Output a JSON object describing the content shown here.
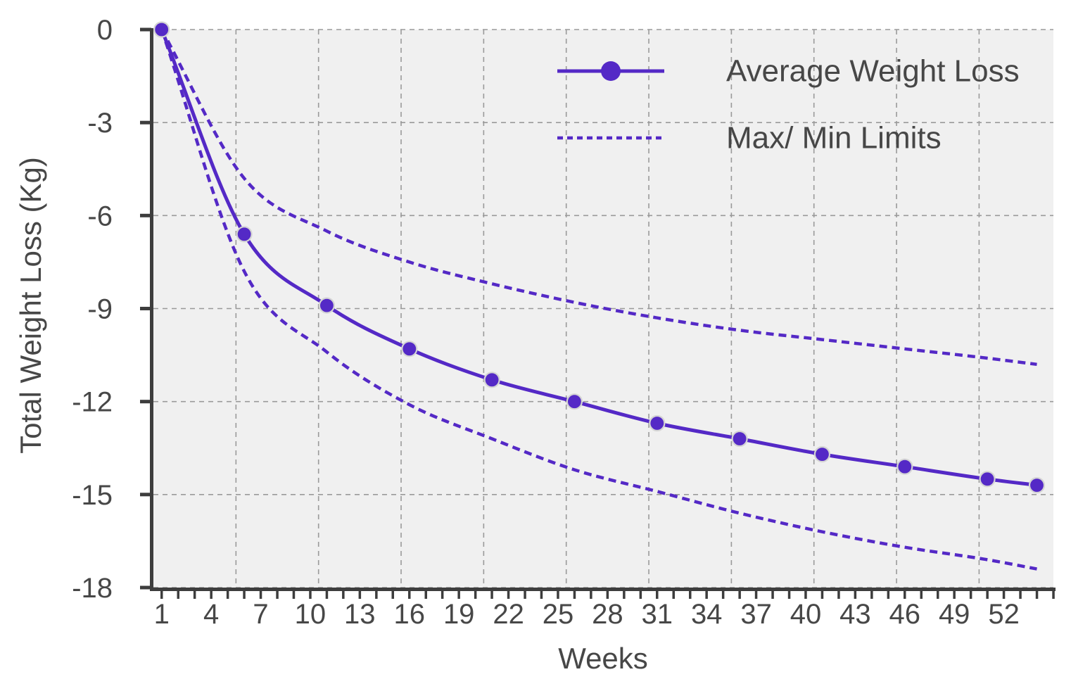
{
  "chart_data": {
    "type": "line",
    "title": "",
    "xlabel": "Weeks",
    "ylabel": "Total Weight Loss (Kg)",
    "xlim": [
      0.5,
      55
    ],
    "ylim": [
      -18,
      0
    ],
    "grid": "dashed gray gridlines on; plot background light gray",
    "x_gridlines": [
      5.5,
      10.5,
      15.5,
      20.5,
      25.5,
      30.5,
      35.5,
      40.5,
      45.5,
      50.5
    ],
    "x_minor_ticks": {
      "min": 1,
      "max": 55,
      "step": 1
    },
    "x_tick_labels": [
      1,
      4,
      7,
      10,
      13,
      16,
      19,
      22,
      25,
      28,
      31,
      34,
      37,
      40,
      43,
      46,
      49,
      52
    ],
    "y_ticks": [
      0,
      -3,
      -6,
      -9,
      -12,
      -15,
      -18
    ],
    "x": [
      1,
      6,
      11,
      16,
      21,
      26,
      31,
      36,
      41,
      46,
      51,
      54
    ],
    "series": [
      {
        "name": "Average Weight Loss",
        "style": "solid",
        "marker": "circle",
        "values": [
          0,
          -6.6,
          -8.9,
          -10.3,
          -11.3,
          -12.0,
          -12.7,
          -13.2,
          -13.7,
          -14.1,
          -14.5,
          -14.7
        ]
      },
      {
        "name": "Max/ Min Limits",
        "role": "min-limit (upper dashed curve)",
        "style": "dashed",
        "marker": "none",
        "values": [
          0,
          -4.8,
          -6.5,
          -7.5,
          -8.2,
          -8.8,
          -9.3,
          -9.7,
          -10.0,
          -10.3,
          -10.6,
          -10.8
        ]
      },
      {
        "name": "Max/ Min Limits",
        "role": "max-limit (lower dashed curve)",
        "style": "dashed",
        "marker": "none",
        "values": [
          0,
          -7.8,
          -10.4,
          -12.1,
          -13.2,
          -14.2,
          -14.9,
          -15.6,
          -16.2,
          -16.7,
          -17.1,
          -17.4
        ]
      }
    ],
    "legend": {
      "position": "top-right inside plot",
      "items": [
        {
          "label": "Average Weight Loss",
          "style": "solid-line-with-dot"
        },
        {
          "label": "Max/ Min Limits",
          "style": "dashed-line"
        }
      ]
    }
  },
  "colors": {
    "series_purple": "#5429c6",
    "plot_background": "#f0f0f0",
    "page_background": "#ffffff",
    "gridline": "#9a9a9a",
    "axis": "#3d3d3d",
    "text": "#474747",
    "marker_stroke": "#d4d4d4"
  }
}
